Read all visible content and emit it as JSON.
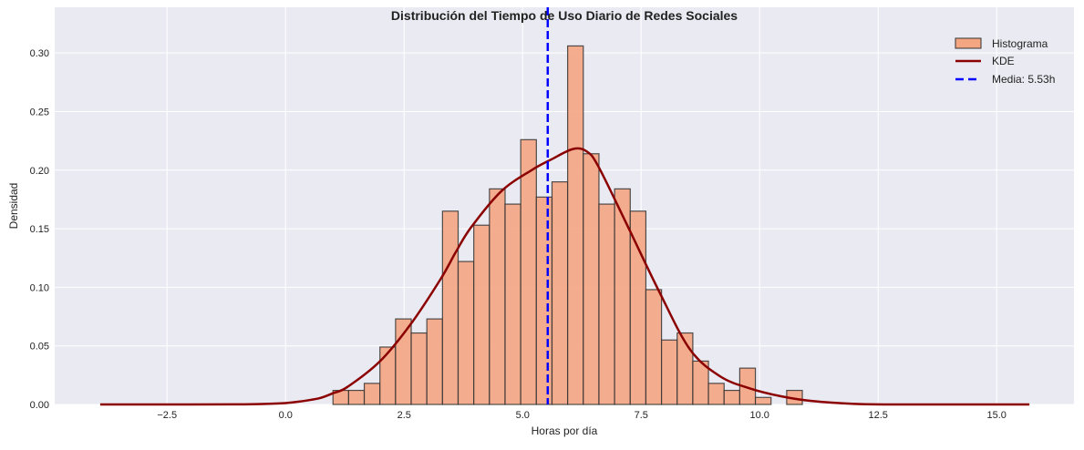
{
  "chart_data": {
    "type": "bar",
    "title": "Distribución del Tiempo de Uso Diario de Redes Sociales",
    "xlabel": "Horas por día",
    "ylabel": "Densidad",
    "xlim": [
      -4.87,
      16.63
    ],
    "ylim": [
      0,
      0.339
    ],
    "xticks": [
      -2.5,
      0.0,
      2.5,
      5.0,
      7.5,
      10.0,
      12.5,
      15.0
    ],
    "xtick_labels": [
      "−2.5",
      "0.0",
      "2.5",
      "5.0",
      "7.5",
      "10.0",
      "12.5",
      "15.0"
    ],
    "yticks": [
      0,
      0.05,
      0.1,
      0.15,
      0.2,
      0.25,
      0.3
    ],
    "ytick_labels": [
      "0.00",
      "0.05",
      "0.10",
      "0.15",
      "0.20",
      "0.25",
      "0.30"
    ],
    "grid": true,
    "legend_position": "top-right",
    "histogram": {
      "name": "Histograma",
      "bin_start": 1.0,
      "bin_width": 0.33,
      "densities": [
        0.012,
        0.012,
        0.018,
        0.049,
        0.073,
        0.061,
        0.073,
        0.165,
        0.122,
        0.153,
        0.184,
        0.171,
        0.226,
        0.177,
        0.19,
        0.306,
        0.214,
        0.171,
        0.184,
        0.165,
        0.098,
        0.055,
        0.061,
        0.037,
        0.018,
        0.012,
        0.031,
        0.006,
        0.0,
        0.012
      ],
      "color": "#f4a582",
      "edge_color": "#333333"
    },
    "kde": {
      "name": "KDE",
      "color": "#8b0000",
      "x": [
        -3.91,
        -2,
        -1,
        -0.5,
        0,
        0.3,
        0.72,
        1.0,
        1.3,
        1.99,
        2.63,
        3.27,
        3.59,
        3.91,
        4.55,
        5.19,
        5.6,
        6.06,
        6.35,
        6.6,
        7.23,
        7.88,
        8.53,
        9.17,
        9.81,
        10.45,
        11.09,
        12.0,
        13.0,
        15.69
      ],
      "y": [
        0,
        0,
        0.0001,
        0.0004,
        0.0012,
        0.0025,
        0.0054,
        0.0096,
        0.0148,
        0.0368,
        0.068,
        0.107,
        0.13,
        0.151,
        0.182,
        0.2,
        0.209,
        0.218,
        0.216,
        0.203,
        0.151,
        0.0964,
        0.047,
        0.0239,
        0.0135,
        0.007,
        0.003,
        0.0005,
        0,
        0
      ]
    },
    "mean_line": {
      "name": "Media: 5.53h",
      "value": 5.53,
      "color": "#0000ff"
    }
  }
}
